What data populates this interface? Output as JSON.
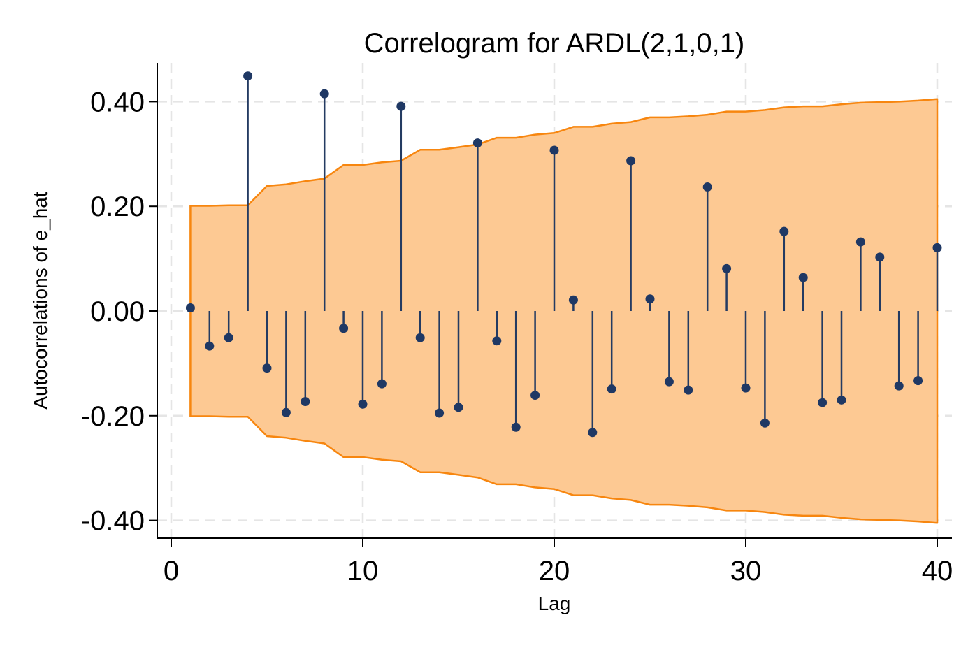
{
  "chart_data": {
    "type": "correlogram",
    "title": "Correlogram for ARDL(2,1,0,1)",
    "xlabel": "Lag",
    "ylabel": "Autocorrelations of e_hat",
    "xlim": [
      0,
      40
    ],
    "ylim": [
      -0.4,
      0.4
    ],
    "xticks": [
      0,
      10,
      20,
      30,
      40
    ],
    "xtick_labels": [
      "0",
      "10",
      "20",
      "30",
      "40"
    ],
    "yticks": [
      -0.4,
      -0.2,
      0,
      0.2,
      0.4
    ],
    "ytick_labels": [
      "-0.40",
      "-0.20",
      "0.00",
      "0.20",
      "0.40"
    ],
    "grid": true,
    "lags": [
      1,
      2,
      3,
      4,
      5,
      6,
      7,
      8,
      9,
      10,
      11,
      12,
      13,
      14,
      15,
      16,
      17,
      18,
      19,
      20,
      21,
      22,
      23,
      24,
      25,
      26,
      27,
      28,
      29,
      30,
      31,
      32,
      33,
      34,
      35,
      36,
      37,
      38,
      39,
      40
    ],
    "autocorrelations": [
      0.006,
      -0.067,
      -0.051,
      0.449,
      -0.109,
      -0.194,
      -0.173,
      0.415,
      -0.033,
      -0.178,
      -0.139,
      0.391,
      -0.051,
      -0.195,
      -0.184,
      0.321,
      -0.057,
      -0.222,
      -0.161,
      0.307,
      0.021,
      -0.232,
      -0.149,
      0.287,
      0.023,
      -0.135,
      -0.151,
      0.237,
      0.081,
      -0.147,
      -0.214,
      0.152,
      0.064,
      -0.175,
      -0.17,
      0.132,
      0.103,
      -0.143,
      -0.133,
      0.121
    ],
    "confidence_band": [
      0.201,
      0.201,
      0.202,
      0.202,
      0.239,
      0.242,
      0.248,
      0.253,
      0.279,
      0.279,
      0.284,
      0.287,
      0.308,
      0.308,
      0.313,
      0.318,
      0.331,
      0.331,
      0.337,
      0.34,
      0.352,
      0.352,
      0.358,
      0.361,
      0.37,
      0.37,
      0.372,
      0.375,
      0.381,
      0.381,
      0.384,
      0.389,
      0.391,
      0.391,
      0.395,
      0.398,
      0.399,
      0.4,
      0.402,
      0.405
    ],
    "colors": {
      "band_fill": "#fdc993",
      "band_edge": "#f7860f",
      "stem": "#243b62",
      "marker": "#1f3864",
      "grid": "#e5e5e5",
      "axis": "#000000"
    }
  }
}
